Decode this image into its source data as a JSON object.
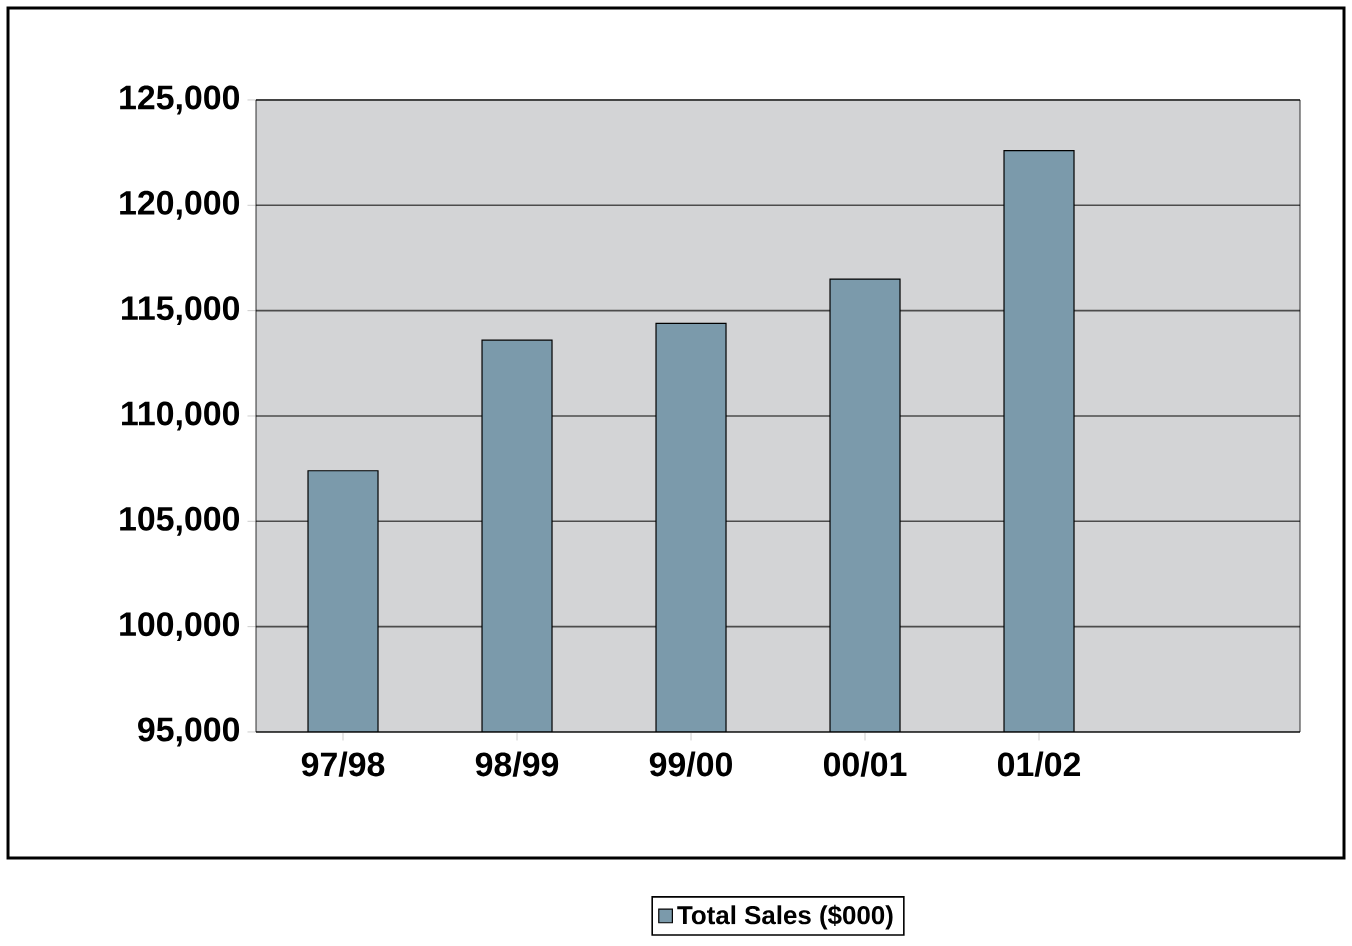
{
  "chart_data": {
    "type": "bar",
    "categories": [
      "97/98",
      "98/99",
      "99/00",
      "00/01",
      "01/02",
      null
    ],
    "series": [
      {
        "name": "Total Sales ($000)",
        "color": "#7b9aab",
        "values": [
          107400,
          113600,
          114400,
          116500,
          122600,
          null
        ]
      }
    ],
    "ylim": [
      95000,
      125000
    ],
    "yticks": [
      {
        "value": 95000,
        "label": "95,000"
      },
      {
        "value": 100000,
        "label": "100,000"
      },
      {
        "value": 105000,
        "label": "105,000"
      },
      {
        "value": 110000,
        "label": "110,000"
      },
      {
        "value": 115000,
        "label": "115,000"
      },
      {
        "value": 120000,
        "label": "120,000"
      },
      {
        "value": 125000,
        "label": "125,000"
      }
    ],
    "grid": "y",
    "legend": "bottom"
  }
}
